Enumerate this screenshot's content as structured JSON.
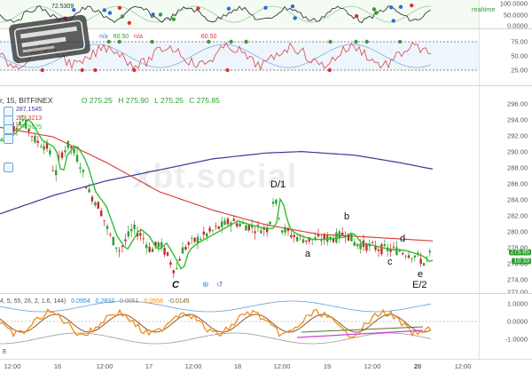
{
  "top_indicator": {
    "value": "72.5309",
    "realtime": "realtime",
    "axis": [
      "100.0000",
      "50.0000",
      "0.0000"
    ]
  },
  "rsi_pane": {
    "legend": [
      "n/a",
      "60.50",
      "n/a"
    ],
    "legend_tail": "60.50",
    "axis": [
      "75.00",
      "50.00",
      "25.00"
    ]
  },
  "main_pane": {
    "symbol": "r, 15, BITFINEX",
    "ohlc": {
      "o": "O 275.25",
      "h": "H 275.90",
      "l": "L 275.25",
      "c": "C 275.85"
    },
    "levels": [
      {
        "label": "287.1545",
        "color": "#3a3a9a"
      },
      {
        "label": "277.3213",
        "color": "#d33"
      },
      {
        "label": "274.9025",
        "color": "#2fbf2f"
      }
    ],
    "axis": [
      "296.00",
      "294.00",
      "292.00",
      "290.00",
      "288.00",
      "286.00",
      "284.00",
      "282.00",
      "280.00",
      "278.00",
      "276.00",
      "274.00",
      "272.00"
    ],
    "price_tag": "275.85",
    "time_tag": "10:33",
    "watermark": "xbt.social",
    "annotations": [
      {
        "text": "C",
        "italic": true
      },
      {
        "text": "D/1"
      },
      {
        "text": "a"
      },
      {
        "text": "b"
      },
      {
        "text": "c"
      },
      {
        "text": "d"
      },
      {
        "text": "e"
      },
      {
        "text": "E/2"
      }
    ]
  },
  "macd_pane": {
    "legend": [
      "4, 5, 55, 26, 2, 1.6, 144)",
      "0.0954",
      "0.2832",
      "0.0051",
      "0.0558",
      "-0.0145"
    ],
    "axis": [
      "1.0000",
      "0.0000",
      "-1.0000"
    ],
    "label": "E"
  },
  "time_axis": [
    "12:00",
    "16",
    "12:00",
    "17",
    "12:00",
    "18",
    "12:00",
    "19",
    "12:00",
    "20",
    "12:00"
  ],
  "colors": {
    "sma_long": "#3a3a9a",
    "sma_mid": "#d33",
    "ema_fast": "#2fbf2f",
    "up": "#2e9e2e",
    "down": "#c62828"
  }
}
